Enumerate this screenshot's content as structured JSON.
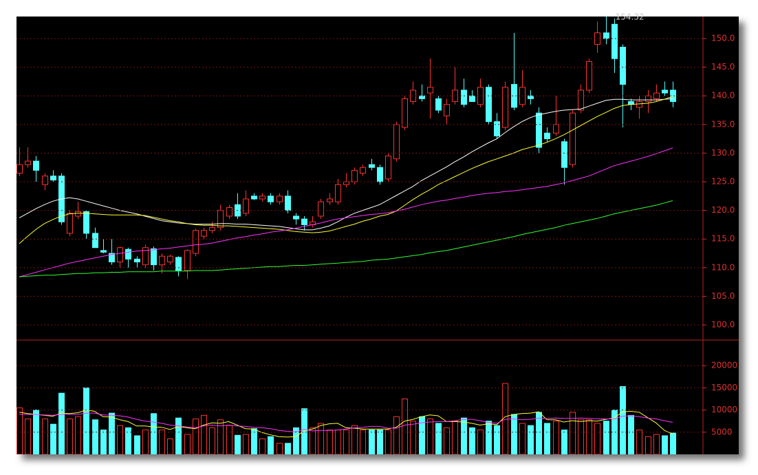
{
  "chart_data": {
    "type": "candlestick",
    "annotation": "154.32",
    "up_color": "#ff3232",
    "down_color": "#54ffff",
    "grid": true,
    "ylim": [
      97.36,
      153.85
    ],
    "yticks": [
      {
        "value": 100,
        "label": "100.0"
      },
      {
        "value": 105,
        "label": "105.0"
      },
      {
        "value": 110,
        "label": "110.0"
      },
      {
        "value": 115,
        "label": "115.0"
      },
      {
        "value": 120,
        "label": "120.0"
      },
      {
        "value": 125,
        "label": "125.0"
      },
      {
        "value": 130,
        "label": "130.0"
      },
      {
        "value": 135,
        "label": "135.0"
      },
      {
        "value": 140,
        "label": "140.0"
      },
      {
        "value": 145,
        "label": "145.0"
      },
      {
        "value": 150,
        "label": "150.0"
      }
    ],
    "open": [
      126.5,
      128,
      128.6,
      124.5,
      126,
      126,
      116,
      119,
      119.8,
      116,
      113,
      112.5,
      111,
      113.2,
      111.5,
      110.5,
      113.3,
      110.5,
      111,
      111.8,
      109.5,
      112.5,
      115.5,
      116.5,
      117,
      119,
      121,
      119.5,
      122.5,
      122,
      122.5,
      121.5,
      122.5,
      119,
      118.5,
      117.5,
      119,
      121.5,
      121.5,
      124.5,
      125,
      126.5,
      128,
      127.5,
      125.5,
      129,
      134.5,
      139,
      140,
      140.5,
      139.5,
      136.5,
      139,
      141,
      140,
      138.5,
      141.5,
      135.5,
      134.5,
      142,
      138.5,
      140,
      137,
      133.5,
      133.5,
      132,
      128,
      137.5,
      141,
      149,
      151,
      152.5,
      148.5,
      139,
      138,
      139,
      139.5,
      141,
      141
    ],
    "high": [
      131,
      131,
      129.5,
      126.5,
      127,
      126.5,
      120,
      121.5,
      120,
      117,
      115,
      115,
      113.7,
      113.5,
      112,
      114,
      113.7,
      112.5,
      112.3,
      112,
      113.2,
      116.8,
      117,
      118,
      121,
      121,
      123,
      123.5,
      123,
      123,
      123,
      123,
      123.5,
      119.5,
      119,
      119,
      122,
      123,
      125.5,
      126.5,
      127.5,
      128,
      129,
      128,
      130,
      135.5,
      140,
      142.5,
      142,
      146.5,
      140,
      139.5,
      145,
      143,
      141,
      143,
      142,
      137,
      142.5,
      151,
      144.5,
      141,
      138,
      134.5,
      140,
      132.5,
      137.5,
      142,
      146.5,
      153,
      154.32,
      153.5,
      149,
      139.5,
      140,
      141,
      142,
      142.5,
      142.5
    ],
    "low": [
      126,
      127.5,
      125,
      123.5,
      125,
      117.5,
      115.5,
      118.5,
      115,
      113.5,
      112.5,
      110.5,
      110,
      110,
      110,
      110,
      109.5,
      109,
      110.5,
      108.5,
      108,
      112,
      115,
      116,
      116.5,
      118.5,
      118.5,
      119,
      121.8,
      121.5,
      121,
      121,
      119.5,
      117.5,
      116.5,
      117,
      118.5,
      121,
      121,
      124,
      124.5,
      126,
      127,
      124.5,
      125,
      128.5,
      134,
      138.5,
      139,
      136,
      137,
      135,
      138.5,
      138,
      139,
      138,
      135,
      132.5,
      134,
      137.5,
      138,
      138.5,
      130,
      132,
      133,
      124.5,
      127.5,
      137,
      140.5,
      147.5,
      149,
      144,
      134.5,
      137.5,
      136,
      137,
      139,
      140,
      138
    ],
    "close": [
      128,
      128.6,
      127,
      126,
      125.3,
      118,
      119.5,
      119.8,
      116,
      113.5,
      112.7,
      111,
      113.5,
      111.5,
      111,
      113.5,
      110.5,
      112,
      112,
      109.5,
      113,
      116.5,
      116.5,
      117,
      120,
      120.5,
      119,
      122,
      122,
      122.5,
      121.5,
      122.5,
      120,
      118.5,
      117.5,
      118,
      121.5,
      122,
      124.5,
      125,
      127,
      127.5,
      127.5,
      125,
      129.5,
      135,
      139.5,
      141,
      139.5,
      141.5,
      137.5,
      138.5,
      141,
      138.5,
      139,
      141.5,
      135.5,
      133,
      141.5,
      138,
      141.5,
      139.5,
      131,
      132.5,
      135,
      127.5,
      137,
      141,
      146,
      151,
      150,
      146.5,
      142,
      138.5,
      139,
      140,
      140.5,
      140.5,
      139
    ],
    "series": [
      {
        "color": "#ffffff",
        "values": [
          118.7,
          119.5,
          120.3,
          121,
          121.6,
          122,
          122.2,
          122,
          121.6,
          121.2,
          120.8,
          120.4,
          120,
          119.7,
          119.4,
          119,
          118.6,
          118.2,
          118,
          117.8,
          117.7,
          117.6,
          117.6,
          117.6,
          117.7,
          117.7,
          117.6,
          117.6,
          117.5,
          117.4,
          117.3,
          117.2,
          117,
          116.8,
          116.6,
          116.6,
          116.9,
          117.3,
          118,
          118.8,
          119.5,
          120,
          120.5,
          121,
          121.8,
          122.6,
          123.4,
          124.2,
          125.2,
          126,
          126.8,
          127.6,
          128.5,
          129.3,
          130.2,
          131,
          131.8,
          132.5,
          133.6,
          134.6,
          135.5,
          136.2,
          136.7,
          137,
          137.3,
          137.5,
          137.6,
          137.7,
          138.2,
          138.7,
          139.2,
          139.4,
          139.4,
          139.3,
          139.3,
          139.3,
          139.3,
          139.4,
          139.5
        ]
      },
      {
        "color": "#ffff33",
        "values": [
          114.2,
          115.5,
          116.7,
          117.7,
          118.4,
          119,
          119.4,
          119.5,
          119.5,
          119.4,
          119.3,
          119.2,
          119.2,
          119.2,
          119.2,
          119.1,
          118.8,
          118.5,
          118.2,
          118,
          117.7,
          117.5,
          117.4,
          117.4,
          117.3,
          117.3,
          117.2,
          117.1,
          117,
          116.9,
          116.8,
          116.7,
          116.5,
          116.3,
          116.2,
          116.1,
          116.2,
          116.4,
          116.8,
          117.2,
          117.6,
          118.1,
          118.5,
          119,
          119.3,
          119.9,
          120.9,
          121.9,
          122.8,
          123.6,
          124.5,
          125.2,
          125.9,
          126.6,
          127.3,
          127.9,
          128.5,
          129,
          129.5,
          130,
          130.6,
          131,
          131.4,
          131.9,
          132.5,
          133.2,
          134,
          134.8,
          135.6,
          136.4,
          137.1,
          137.8,
          138.3,
          138.5,
          138.6,
          138.7,
          139,
          139.4,
          139.9
        ]
      },
      {
        "color": "#ff33ff",
        "values": [
          108.4,
          108.8,
          109.2,
          109.6,
          110,
          110.4,
          110.8,
          111.1,
          111.4,
          111.7,
          112,
          112.3,
          112.5,
          112.7,
          112.9,
          113,
          113.1,
          113.3,
          113.4,
          113.6,
          113.8,
          114,
          114.1,
          114.3,
          114.6,
          114.9,
          115.2,
          115.4,
          115.7,
          115.9,
          116.2,
          116.4,
          116.6,
          116.9,
          117.2,
          117.5,
          117.8,
          118.2,
          118.5,
          118.7,
          118.9,
          119.1,
          119.3,
          119.4,
          119.6,
          119.9,
          120.2,
          120.6,
          121,
          121.3,
          121.6,
          121.8,
          122.1,
          122.3,
          122.6,
          122.8,
          123,
          123.1,
          123.3,
          123.4,
          123.6,
          123.8,
          124,
          124.2,
          124.5,
          124.8,
          125.2,
          125.6,
          126,
          126.6,
          127.2,
          127.8,
          128.2,
          128.6,
          129,
          129.4,
          129.9,
          130.4,
          130.9
        ]
      },
      {
        "color": "#33ff33",
        "values": [
          108.4,
          108.5,
          108.6,
          108.7,
          108.7,
          108.8,
          108.9,
          109,
          109,
          109.1,
          109.1,
          109.2,
          109.2,
          109.3,
          109.3,
          109.3,
          109.3,
          109.4,
          109.4,
          109.4,
          109.4,
          109.5,
          109.5,
          109.5,
          109.6,
          109.7,
          109.8,
          109.9,
          110,
          110.1,
          110.2,
          110.2,
          110.3,
          110.4,
          110.4,
          110.5,
          110.6,
          110.7,
          110.8,
          110.9,
          111,
          111.1,
          111.3,
          111.4,
          111.5,
          111.7,
          111.9,
          112.1,
          112.3,
          112.6,
          112.8,
          113,
          113.3,
          113.6,
          113.9,
          114.2,
          114.5,
          114.8,
          115.1,
          115.4,
          115.8,
          116.1,
          116.4,
          116.7,
          117,
          117.4,
          117.7,
          118,
          118.3,
          118.6,
          119,
          119.4,
          119.7,
          120,
          120.3,
          120.6,
          120.9,
          121.3,
          121.7
        ]
      }
    ],
    "volume": {
      "ylim": [
        0,
        25780
      ],
      "yticks": [
        5000,
        10000,
        15000,
        20000
      ],
      "values": [
        10500,
        8000,
        10000,
        8000,
        6800,
        13800,
        8000,
        8500,
        15000,
        7800,
        5500,
        9300,
        6500,
        6000,
        4200,
        5500,
        9200,
        5500,
        3500,
        8200,
        4500,
        8000,
        8800,
        6000,
        7800,
        6500,
        4300,
        4500,
        5800,
        3500,
        4000,
        2500,
        2500,
        6000,
        10300,
        6000,
        7000,
        5500,
        5500,
        5500,
        6500,
        5500,
        5500,
        5500,
        5500,
        8500,
        12500,
        7500,
        8500,
        8000,
        7000,
        6000,
        7500,
        8200,
        6000,
        5500,
        7500,
        6500,
        16000,
        9000,
        7000,
        6500,
        9500,
        7000,
        7500,
        5500,
        9500,
        7800,
        7800,
        7000,
        7500,
        10000,
        15300,
        8800,
        5500,
        4000,
        4500,
        4200,
        4800
      ],
      "series": [
        {
          "color": "#ffff33",
          "values": [
            9500,
            9200,
            9000,
            8800,
            8600,
            9300,
            9200,
            9400,
            10000,
            9700,
            8500,
            8400,
            7800,
            7400,
            6400,
            6400,
            6200,
            6100,
            5600,
            6300,
            6000,
            5800,
            6600,
            7100,
            7000,
            7400,
            6600,
            5800,
            5700,
            4900,
            4400,
            4000,
            3900,
            4000,
            5300,
            5700,
            6500,
            6900,
            7000,
            6000,
            5900,
            5700,
            5700,
            5700,
            5700,
            6100,
            7500,
            7900,
            8500,
            8900,
            8700,
            7400,
            7400,
            7300,
            7000,
            6600,
            6900,
            6700,
            8500,
            9000,
            9200,
            9300,
            9600,
            7800,
            7800,
            7300,
            7600,
            7400,
            7600,
            7500,
            7900,
            8200,
            9600,
            9700,
            9500,
            8300,
            7100,
            5400,
            4600
          ]
        },
        {
          "color": "#ff33ff",
          "values": [
            9000,
            9000,
            9000,
            8900,
            8800,
            9000,
            9000,
            9000,
            9300,
            9300,
            8900,
            8800,
            8700,
            8400,
            7900,
            7500,
            7300,
            7000,
            6600,
            6400,
            6200,
            6000,
            6400,
            6600,
            6400,
            6600,
            6400,
            6300,
            6100,
            6000,
            5800,
            5400,
            5200,
            5100,
            5600,
            5300,
            5400,
            5400,
            5500,
            5700,
            6000,
            6100,
            6300,
            6300,
            5900,
            5900,
            6600,
            6800,
            7100,
            7300,
            7400,
            7400,
            7600,
            7900,
            7900,
            7600,
            7200,
            7000,
            7900,
            8000,
            7800,
            7900,
            8200,
            8100,
            8200,
            8100,
            8100,
            8200,
            8100,
            8000,
            8000,
            8000,
            8600,
            8700,
            8500,
            8200,
            8000,
            7600,
            7200
          ]
        }
      ]
    }
  }
}
